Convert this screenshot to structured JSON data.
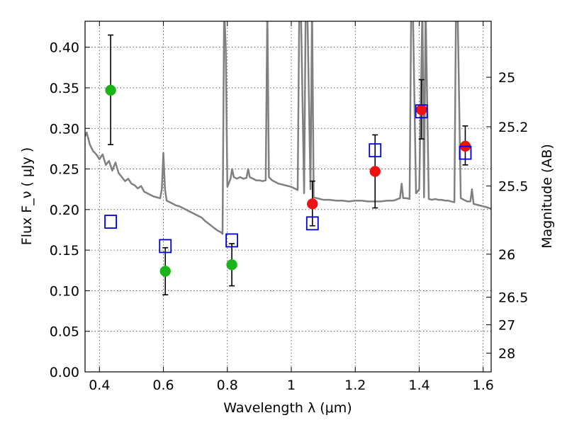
{
  "chart_data": {
    "type": "scatter",
    "xlabel": "Wavelength  λ (μm)",
    "ylabel": "Flux  F_ν  ( μJy )",
    "ylabel2": "Magnitude (AB)",
    "xlim": [
      0.355,
      1.625
    ],
    "ylim": [
      0.0,
      0.432
    ],
    "grid": true,
    "x_ticks": [
      {
        "value": 0.4,
        "label": "0.4"
      },
      {
        "value": 0.6,
        "label": "0.6"
      },
      {
        "value": 0.8,
        "label": "0.8"
      },
      {
        "value": 1.0,
        "label": "1"
      },
      {
        "value": 1.2,
        "label": "1.2"
      },
      {
        "value": 1.4,
        "label": "1.4"
      },
      {
        "value": 1.6,
        "label": "1.6"
      }
    ],
    "y_ticks": [
      {
        "value": 0.0,
        "label": "0.00"
      },
      {
        "value": 0.05,
        "label": "0.05"
      },
      {
        "value": 0.1,
        "label": "0.10"
      },
      {
        "value": 0.15,
        "label": "0.15"
      },
      {
        "value": 0.2,
        "label": "0.20"
      },
      {
        "value": 0.25,
        "label": "0.25"
      },
      {
        "value": 0.3,
        "label": "0.30"
      },
      {
        "value": 0.35,
        "label": "0.35"
      },
      {
        "value": 0.4,
        "label": "0.40"
      }
    ],
    "mag_ticks": [
      {
        "flux": 0.363,
        "label": "25"
      },
      {
        "flux": 0.302,
        "label": "25.2"
      },
      {
        "flux": 0.229,
        "label": "25.5"
      },
      {
        "flux": 0.145,
        "label": "26"
      },
      {
        "flux": 0.092,
        "label": "26.5"
      },
      {
        "flux": 0.058,
        "label": "27"
      },
      {
        "flux": 0.023,
        "label": "28"
      }
    ],
    "series": [
      {
        "marker": "circle",
        "color": "#1ab41a",
        "points": [
          {
            "x": 0.435,
            "y": 0.347,
            "err_lo": 0.28,
            "err_hi": 0.415
          },
          {
            "x": 0.606,
            "y": 0.124,
            "err_lo": 0.095,
            "err_hi": 0.153
          },
          {
            "x": 0.814,
            "y": 0.132,
            "err_lo": 0.106,
            "err_hi": 0.158
          }
        ]
      },
      {
        "marker": "circle",
        "color": "#ee1111",
        "points": [
          {
            "x": 1.066,
            "y": 0.207,
            "err_lo": 0.18,
            "err_hi": 0.235
          },
          {
            "x": 1.262,
            "y": 0.247,
            "err_lo": 0.202,
            "err_hi": 0.292
          },
          {
            "x": 1.407,
            "y": 0.323,
            "err_lo": 0.287,
            "err_hi": 0.36
          },
          {
            "x": 1.544,
            "y": 0.278,
            "err_lo": 0.255,
            "err_hi": 0.303
          }
        ]
      },
      {
        "marker": "open-square",
        "color": "#0000dd",
        "points": [
          {
            "x": 0.435,
            "y": 0.185
          },
          {
            "x": 0.606,
            "y": 0.155
          },
          {
            "x": 0.814,
            "y": 0.162
          },
          {
            "x": 1.066,
            "y": 0.183
          },
          {
            "x": 1.262,
            "y": 0.273
          },
          {
            "x": 1.407,
            "y": 0.321
          },
          {
            "x": 1.544,
            "y": 0.27
          }
        ]
      },
      {
        "marker": "line",
        "color": "#808080",
        "x": [
          0.355,
          0.36,
          0.37,
          0.38,
          0.39,
          0.4,
          0.41,
          0.42,
          0.43,
          0.44,
          0.45,
          0.46,
          0.47,
          0.48,
          0.49,
          0.5,
          0.51,
          0.52,
          0.53,
          0.54,
          0.55,
          0.56,
          0.57,
          0.58,
          0.59,
          0.595,
          0.6,
          0.605,
          0.61,
          0.62,
          0.63,
          0.64,
          0.65,
          0.66,
          0.67,
          0.68,
          0.69,
          0.7,
          0.71,
          0.72,
          0.73,
          0.74,
          0.75,
          0.76,
          0.77,
          0.78,
          0.785,
          0.79,
          0.795,
          0.8,
          0.81,
          0.815,
          0.82,
          0.83,
          0.84,
          0.85,
          0.86,
          0.865,
          0.87,
          0.88,
          0.89,
          0.9,
          0.91,
          0.92,
          0.925,
          0.93,
          0.94,
          0.95,
          0.96,
          0.97,
          0.98,
          0.99,
          1.0,
          1.01,
          1.02,
          1.025,
          1.03,
          1.04,
          1.045,
          1.05,
          1.06,
          1.065,
          1.07,
          1.08,
          1.1,
          1.12,
          1.14,
          1.16,
          1.18,
          1.2,
          1.22,
          1.24,
          1.26,
          1.28,
          1.3,
          1.32,
          1.34,
          1.345,
          1.35,
          1.36,
          1.37,
          1.375,
          1.38,
          1.39,
          1.4,
          1.41,
          1.415,
          1.42,
          1.43,
          1.44,
          1.45,
          1.46,
          1.47,
          1.48,
          1.49,
          1.5,
          1.51,
          1.515,
          1.52,
          1.53,
          1.54,
          1.55,
          1.56,
          1.565,
          1.57,
          1.58,
          1.59,
          1.6,
          1.61,
          1.625
        ],
        "y": [
          0.29,
          0.295,
          0.28,
          0.272,
          0.268,
          0.262,
          0.268,
          0.255,
          0.26,
          0.248,
          0.258,
          0.245,
          0.24,
          0.235,
          0.238,
          0.232,
          0.23,
          0.226,
          0.229,
          0.222,
          0.22,
          0.218,
          0.216,
          0.215,
          0.214,
          0.225,
          0.27,
          0.225,
          0.211,
          0.209,
          0.207,
          0.205,
          0.204,
          0.202,
          0.2,
          0.198,
          0.196,
          0.194,
          0.192,
          0.19,
          0.186,
          0.183,
          0.18,
          0.177,
          0.174,
          0.172,
          0.17,
          0.45,
          0.4,
          0.228,
          0.238,
          0.25,
          0.24,
          0.238,
          0.24,
          0.238,
          0.239,
          0.25,
          0.24,
          0.238,
          0.236,
          0.236,
          0.235,
          0.236,
          0.45,
          0.24,
          0.236,
          0.234,
          0.232,
          0.231,
          0.23,
          0.229,
          0.228,
          0.226,
          0.224,
          0.45,
          0.45,
          0.22,
          0.45,
          0.45,
          0.225,
          0.45,
          0.215,
          0.214,
          0.212,
          0.212,
          0.211,
          0.211,
          0.21,
          0.211,
          0.211,
          0.21,
          0.21,
          0.21,
          0.211,
          0.211,
          0.214,
          0.232,
          0.214,
          0.214,
          0.213,
          0.45,
          0.45,
          0.22,
          0.225,
          0.45,
          0.215,
          0.45,
          0.213,
          0.212,
          0.213,
          0.212,
          0.212,
          0.211,
          0.211,
          0.21,
          0.209,
          0.45,
          0.45,
          0.214,
          0.212,
          0.21,
          0.21,
          0.225,
          0.207,
          0.206,
          0.205,
          0.204,
          0.203,
          0.201
        ]
      }
    ]
  }
}
